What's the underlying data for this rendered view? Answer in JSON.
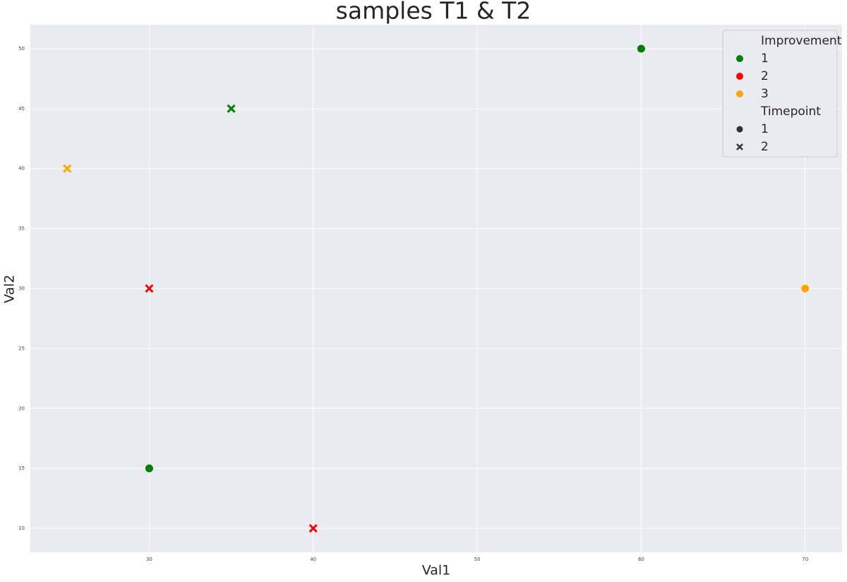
{
  "chart_data": {
    "type": "scatter",
    "title": "samples T1 & T2",
    "x_label": "Val1",
    "y_label": "Val2",
    "x": [
      60,
      35,
      25,
      30,
      70,
      30,
      40
    ],
    "y": [
      50,
      45,
      40,
      30,
      30,
      15,
      10
    ],
    "hue": [
      1,
      1,
      3,
      2,
      3,
      1,
      2
    ],
    "style": [
      1,
      2,
      2,
      2,
      1,
      1,
      2
    ],
    "xlim": [
      22.75,
      72.25
    ],
    "xticks": [
      30,
      40,
      50,
      60,
      70
    ],
    "ylim": [
      8,
      52
    ],
    "yticks": [
      10,
      15,
      20,
      25,
      30,
      35,
      40,
      45,
      50
    ],
    "grid": true,
    "legend_position": "upper right",
    "legend": {
      "hue_title": "Improvement",
      "hue_levels": [
        {
          "label": 1,
          "color": "#008000"
        },
        {
          "label": 2,
          "color": "#ff0000"
        },
        {
          "label": 3,
          "color": "#ffa500"
        }
      ],
      "style_title": "Timepoint",
      "style_levels": [
        {
          "label": 1,
          "marker": "circle"
        },
        {
          "label": 2,
          "marker": "x"
        }
      ]
    }
  }
}
